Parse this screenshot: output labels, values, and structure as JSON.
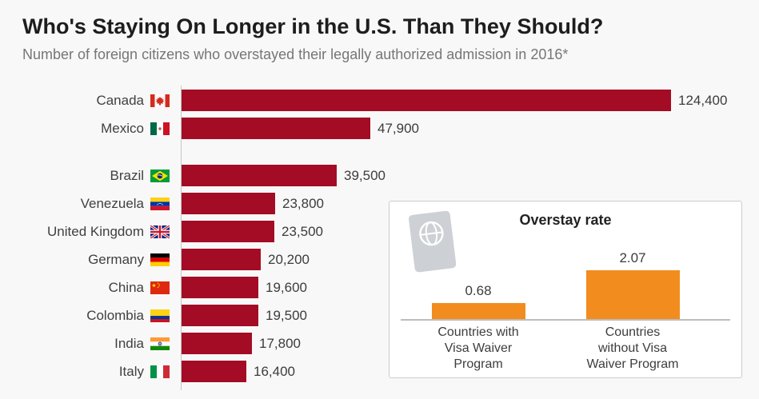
{
  "header": {
    "title": "Who's Staying On Longer in the U.S. Than They Should?",
    "subtitle": "Number of foreign citizens who overstayed their legally authorized admission in 2016*"
  },
  "chart_data": {
    "type": "bar",
    "orientation": "horizontal",
    "title": "Who's Staying On Longer in the U.S. Than They Should?",
    "subtitle": "Number of foreign citizens who overstayed their legally authorized admission in 2016*",
    "bar_color": "#a30c24",
    "grid": false,
    "xlim": [
      0,
      124400
    ],
    "categories": [
      "Canada",
      "Mexico",
      "Brazil",
      "Venezuela",
      "United Kingdom",
      "Germany",
      "China",
      "Colombia",
      "India",
      "Italy"
    ],
    "values": [
      124400,
      47900,
      39500,
      23800,
      23500,
      20200,
      19600,
      19500,
      17800,
      16400
    ],
    "value_labels": [
      "124,400",
      "47,900",
      "39,500",
      "23,800",
      "23,500",
      "20,200",
      "19,600",
      "19,500",
      "17,800",
      "16,400"
    ],
    "flag_icons": [
      "flag-canada",
      "flag-mexico",
      "flag-brazil",
      "flag-venezuela",
      "flag-united-kingdom",
      "flag-germany",
      "flag-china",
      "flag-colombia",
      "flag-india",
      "flag-italy"
    ],
    "group_gap_before_index": 2,
    "inset": {
      "type": "bar",
      "title": "Overstay rate",
      "bar_color": "#f28c1e",
      "icon": "passport-icon",
      "categories": [
        "Countries with Visa Waiver Program",
        "Countries without Visa Waiver Program"
      ],
      "category_lines": [
        [
          "Countries with",
          "Visa Waiver",
          "Program"
        ],
        [
          "Countries",
          "without Visa",
          "Waiver Program"
        ]
      ],
      "values": [
        0.68,
        2.07
      ],
      "value_labels": [
        "0.68",
        "2.07"
      ],
      "ylim": [
        0,
        2.2
      ]
    }
  }
}
